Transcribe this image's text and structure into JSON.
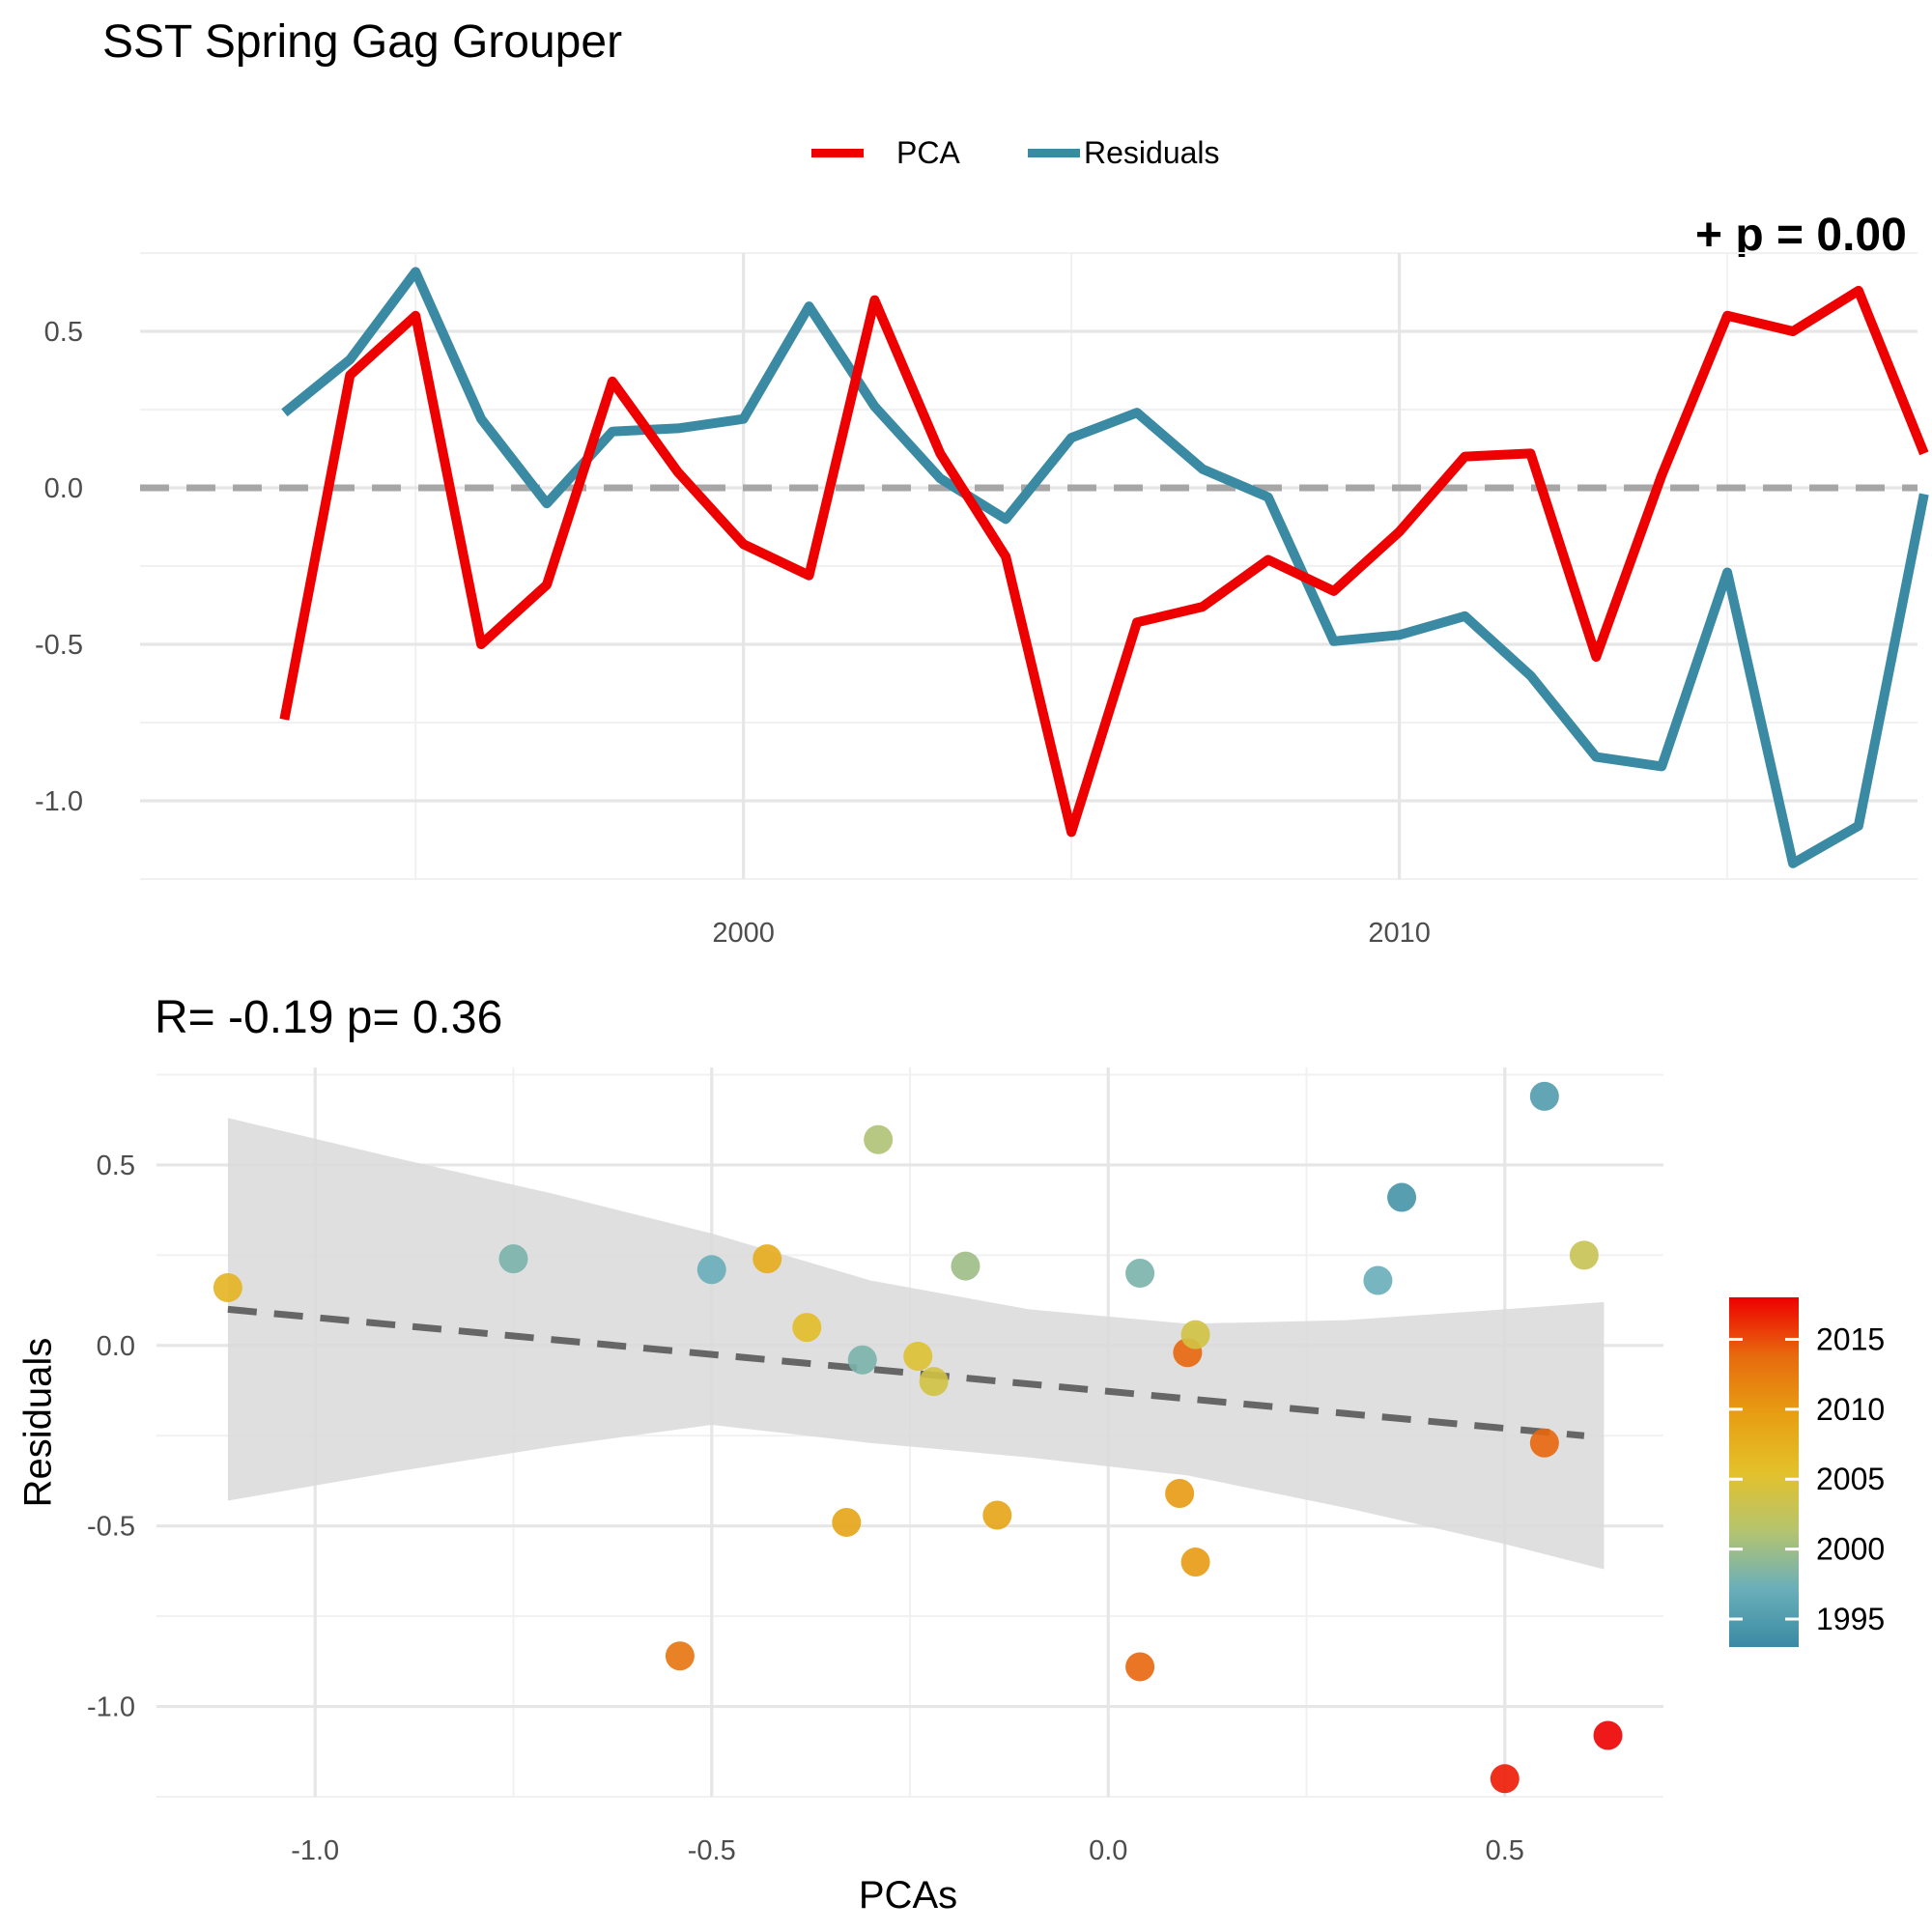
{
  "title": "SST Spring Gag Grouper",
  "legend": [
    {
      "label": "PCA",
      "color": "#ee0000"
    },
    {
      "label": "Residuals",
      "color": "#3a8aa3"
    }
  ],
  "corner_label": "+ p = 0.00",
  "scatter_annotation": "R= -0.19  p= 0.36",
  "chart_data": [
    {
      "type": "line",
      "title": "SST Spring Gag Grouper",
      "xlabel": "",
      "ylabel": "",
      "xlim": [
        1990.8,
        2017.9
      ],
      "ylim": [
        -1.25,
        0.75
      ],
      "x_ticks": [
        2000,
        2010
      ],
      "y_ticks": [
        -1.0,
        -0.5,
        0.0,
        0.5
      ],
      "x_tick_labels": [
        "2000",
        "2010"
      ],
      "y_tick_labels": [
        "-1.0",
        "-0.5",
        "0.0",
        "0.5"
      ],
      "grid": true,
      "legend_position": "top",
      "reference_line": {
        "y": 0,
        "style": "dashed",
        "color": "#a6a6a6"
      },
      "x": [
        1993,
        1994,
        1995,
        1996,
        1997,
        1998,
        1999,
        2000,
        2001,
        2002,
        2003,
        2004,
        2005,
        2006,
        2007,
        2008,
        2009,
        2010,
        2011,
        2012,
        2013,
        2014,
        2015,
        2016,
        2017,
        2018
      ],
      "series": [
        {
          "name": "PCA",
          "color": "#ee0000",
          "values": [
            -0.74,
            0.36,
            0.55,
            -0.5,
            -0.31,
            0.34,
            0.05,
            -0.18,
            -0.28,
            0.6,
            0.11,
            -0.22,
            -1.1,
            -0.43,
            -0.38,
            -0.23,
            -0.33,
            -0.14,
            0.1,
            0.11,
            -0.54,
            0.04,
            0.55,
            0.5,
            0.63,
            0.11
          ]
        },
        {
          "name": "Residuals",
          "color": "#3a8aa3",
          "values": [
            0.24,
            0.41,
            0.69,
            0.22,
            -0.05,
            0.18,
            0.19,
            0.22,
            0.58,
            0.26,
            0.03,
            -0.1,
            0.16,
            0.24,
            0.06,
            -0.03,
            -0.49,
            -0.47,
            -0.41,
            -0.6,
            -0.86,
            -0.89,
            -0.27,
            -1.2,
            -1.08,
            -0.02
          ]
        }
      ]
    },
    {
      "type": "scatter",
      "title": "R= -0.19  p= 0.36",
      "xlabel": "PCAs",
      "ylabel": "Residuals",
      "xlim": [
        -1.2,
        0.7
      ],
      "ylim": [
        -1.25,
        0.77
      ],
      "x_ticks": [
        -1.0,
        -0.5,
        0.0,
        0.5
      ],
      "y_ticks": [
        -1.0,
        -0.5,
        0.0,
        0.5
      ],
      "x_tick_labels": [
        "-1.0",
        "-0.5",
        "0.0",
        "0.5"
      ],
      "y_tick_labels": [
        "-1.0",
        "-0.5",
        "0.0",
        "0.5"
      ],
      "grid": true,
      "color_scale": {
        "variable": "year",
        "range": [
          1993,
          2018
        ],
        "ticks": [
          1995,
          2000,
          2005,
          2010,
          2015
        ],
        "tick_labels": [
          "1995",
          "2000",
          "2005",
          "2010",
          "2015"
        ],
        "colors": [
          "#3a8aa3",
          "#6aafba",
          "#b5c46e",
          "#e3c12a",
          "#e79e12",
          "#e76a0e",
          "#ee0000"
        ],
        "legend_position": "right"
      },
      "points": [
        {
          "x": -1.11,
          "y": 0.16,
          "year": 2007
        },
        {
          "x": -0.75,
          "y": 0.24,
          "year": 1998
        },
        {
          "x": -0.5,
          "y": 0.21,
          "year": 1997
        },
        {
          "x": -0.43,
          "y": 0.24,
          "year": 2008
        },
        {
          "x": -0.38,
          "y": 0.05,
          "year": 2006
        },
        {
          "x": -0.31,
          "y": -0.04,
          "year": 1998
        },
        {
          "x": -0.29,
          "y": 0.57,
          "year": 2001
        },
        {
          "x": -0.24,
          "y": -0.03,
          "year": 2005
        },
        {
          "x": -0.22,
          "y": -0.1,
          "year": 2004
        },
        {
          "x": -0.18,
          "y": 0.22,
          "year": 2000
        },
        {
          "x": 0.04,
          "y": 0.2,
          "year": 1998
        },
        {
          "x": 0.1,
          "y": -0.02,
          "year": 2014
        },
        {
          "x": 0.11,
          "y": 0.03,
          "year": 2004
        },
        {
          "x": 0.34,
          "y": 0.18,
          "year": 1997
        },
        {
          "x": 0.37,
          "y": 0.41,
          "year": 1994
        },
        {
          "x": 0.55,
          "y": 0.69,
          "year": 1995
        },
        {
          "x": 0.6,
          "y": 0.25,
          "year": 2003
        },
        {
          "x": 0.55,
          "y": -0.27,
          "year": 2014
        },
        {
          "x": -0.33,
          "y": -0.49,
          "year": 2009
        },
        {
          "x": -0.14,
          "y": -0.47,
          "year": 2009
        },
        {
          "x": 0.09,
          "y": -0.41,
          "year": 2010
        },
        {
          "x": 0.11,
          "y": -0.6,
          "year": 2010
        },
        {
          "x": -0.54,
          "y": -0.86,
          "year": 2013
        },
        {
          "x": 0.04,
          "y": -0.89,
          "year": 2014
        },
        {
          "x": 0.5,
          "y": -1.2,
          "year": 2017
        },
        {
          "x": 0.63,
          "y": -1.08,
          "year": 2018
        }
      ],
      "fit_line": {
        "x": [
          -1.11,
          0.6
        ],
        "y": [
          0.1,
          -0.25
        ],
        "style": "dashed",
        "color": "#666666"
      },
      "confidence_band": {
        "x": [
          -1.11,
          -0.9,
          -0.7,
          -0.5,
          -0.3,
          -0.1,
          0.1,
          0.3,
          0.5,
          0.625
        ],
        "upper": [
          0.63,
          0.52,
          0.42,
          0.31,
          0.18,
          0.1,
          0.06,
          0.07,
          0.1,
          0.12
        ],
        "lower": [
          -0.43,
          -0.35,
          -0.28,
          -0.22,
          -0.27,
          -0.31,
          -0.36,
          -0.45,
          -0.55,
          -0.62
        ]
      }
    }
  ]
}
